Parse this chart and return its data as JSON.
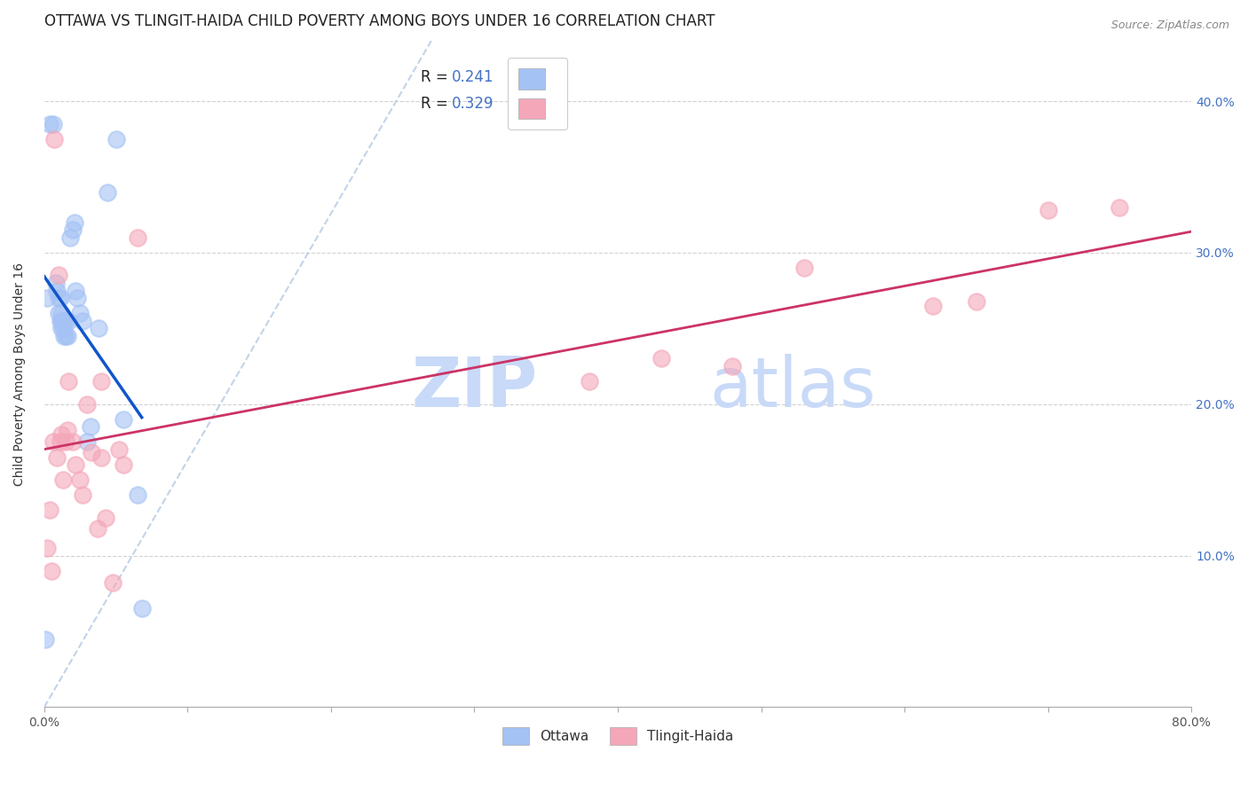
{
  "title": "OTTAWA VS TLINGIT-HAIDA CHILD POVERTY AMONG BOYS UNDER 16 CORRELATION CHART",
  "source": "Source: ZipAtlas.com",
  "ylabel": "Child Poverty Among Boys Under 16",
  "xlim": [
    0,
    0.8
  ],
  "ylim": [
    0,
    0.44
  ],
  "ottawa_r": 0.241,
  "ottawa_n": 36,
  "tlingit_r": 0.329,
  "tlingit_n": 35,
  "ottawa_color": "#a4c2f4",
  "tlingit_color": "#f4a7b9",
  "ottawa_line_color": "#1155cc",
  "tlingit_line_color": "#cc3366",
  "ref_line_color": "#b8cce4",
  "watermark_color": "#c9daf8",
  "grid_color": "#cccccc",
  "background_color": "#ffffff",
  "title_fontsize": 12,
  "axis_label_fontsize": 10,
  "tick_fontsize": 10,
  "ottawa_x": [
    0.001,
    0.004,
    0.006,
    0.008,
    0.009,
    0.01,
    0.01,
    0.011,
    0.011,
    0.012,
    0.012,
    0.012,
    0.013,
    0.013,
    0.014,
    0.014,
    0.015,
    0.015,
    0.016,
    0.017,
    0.018,
    0.02,
    0.021,
    0.022,
    0.023,
    0.025,
    0.027,
    0.03,
    0.032,
    0.038,
    0.044,
    0.05,
    0.055,
    0.065,
    0.068,
    0.002
  ],
  "ottawa_y": [
    0.045,
    0.385,
    0.385,
    0.28,
    0.275,
    0.27,
    0.26,
    0.27,
    0.255,
    0.26,
    0.255,
    0.25,
    0.255,
    0.25,
    0.255,
    0.245,
    0.255,
    0.245,
    0.245,
    0.255,
    0.31,
    0.315,
    0.32,
    0.275,
    0.27,
    0.26,
    0.255,
    0.175,
    0.185,
    0.25,
    0.34,
    0.375,
    0.19,
    0.14,
    0.065,
    0.27
  ],
  "tlingit_x": [
    0.002,
    0.004,
    0.005,
    0.007,
    0.009,
    0.01,
    0.011,
    0.012,
    0.013,
    0.015,
    0.017,
    0.02,
    0.022,
    0.025,
    0.027,
    0.03,
    0.033,
    0.037,
    0.04,
    0.043,
    0.048,
    0.052,
    0.055,
    0.38,
    0.43,
    0.48,
    0.53,
    0.62,
    0.65,
    0.7,
    0.75,
    0.006,
    0.016,
    0.04,
    0.065
  ],
  "tlingit_y": [
    0.105,
    0.13,
    0.09,
    0.375,
    0.165,
    0.285,
    0.175,
    0.18,
    0.15,
    0.175,
    0.215,
    0.175,
    0.16,
    0.15,
    0.14,
    0.2,
    0.168,
    0.118,
    0.165,
    0.125,
    0.082,
    0.17,
    0.16,
    0.215,
    0.23,
    0.225,
    0.29,
    0.265,
    0.268,
    0.328,
    0.33,
    0.175,
    0.183,
    0.215,
    0.31
  ]
}
